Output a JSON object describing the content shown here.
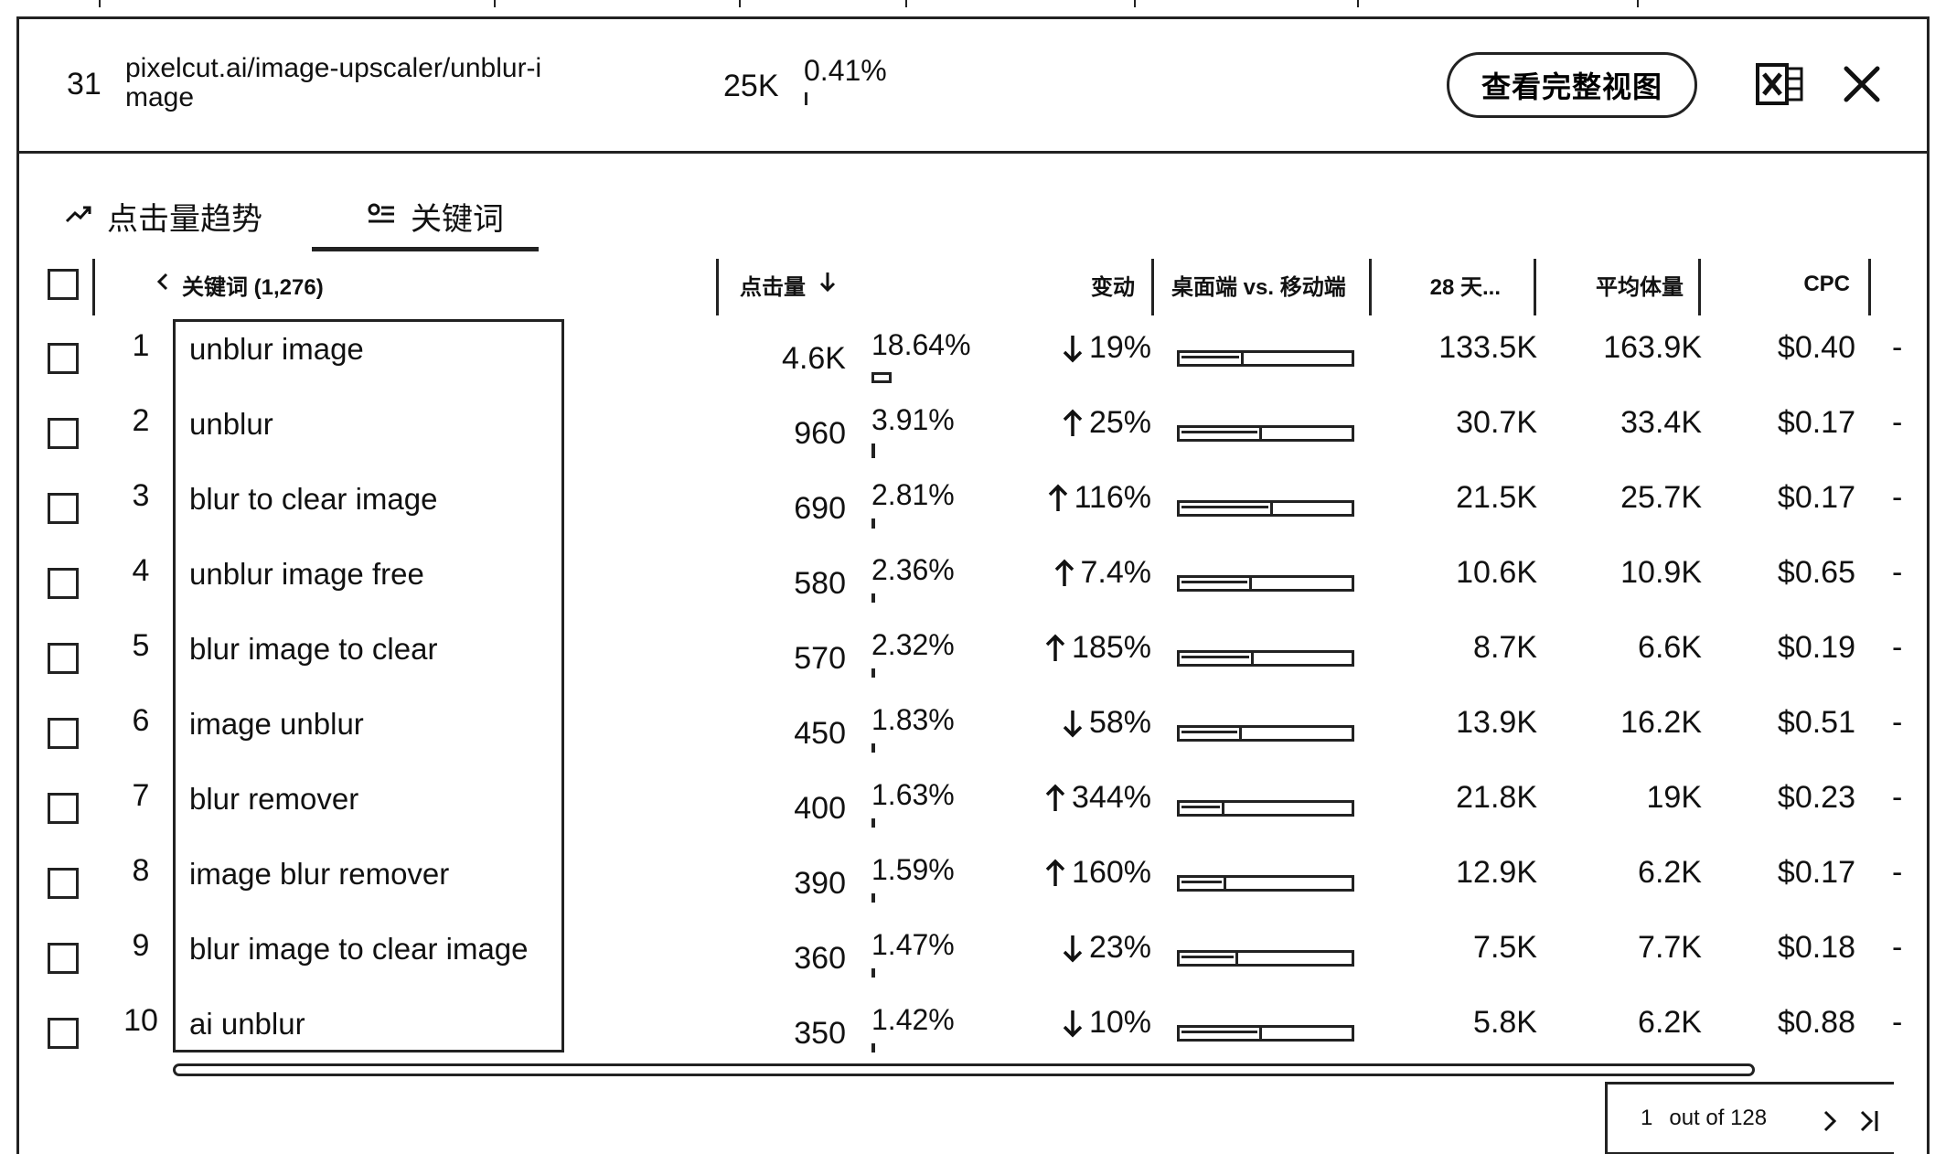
{
  "header": {
    "rank": "31",
    "url": "pixelcut.ai/image-upscaler/unblur-image",
    "clicks": "25K",
    "share": "0.41%",
    "full_view_label": "查看完整视图",
    "export_icon": "excel-icon",
    "close_icon": "close-icon"
  },
  "tabs": [
    {
      "label": "点击量趋势",
      "icon": "trend-icon",
      "active": false
    },
    {
      "label": "关键词",
      "icon": "keyword-list-icon",
      "active": true
    }
  ],
  "table": {
    "columns": {
      "keyword": "关键词 (1,276)",
      "clicks": "点击量",
      "change": "变动",
      "desktop_mobile": "桌面端 vs. 移动端",
      "days28": "28 天...",
      "avg_volume": "平均体量",
      "cpc": "CPC"
    },
    "rows": [
      {
        "rank": "1",
        "keyword": "unblur image",
        "clicks": "4.6K",
        "share": "18.64%",
        "share_pct": 18.64,
        "dir": "down",
        "change": "19%",
        "desktop_pct": 37,
        "d28": "133.5K",
        "vol": "163.9K",
        "cpc": "$0.40",
        "extra": "-"
      },
      {
        "rank": "2",
        "keyword": "unblur",
        "clicks": "960",
        "share": "3.91%",
        "share_pct": 3.91,
        "dir": "up",
        "change": "25%",
        "desktop_pct": 48,
        "d28": "30.7K",
        "vol": "33.4K",
        "cpc": "$0.17",
        "extra": "-"
      },
      {
        "rank": "3",
        "keyword": "blur to clear image",
        "clicks": "690",
        "share": "2.81%",
        "share_pct": 2.81,
        "dir": "up",
        "change": "116%",
        "desktop_pct": 54,
        "d28": "21.5K",
        "vol": "25.7K",
        "cpc": "$0.17",
        "extra": "-"
      },
      {
        "rank": "4",
        "keyword": "unblur image free",
        "clicks": "580",
        "share": "2.36%",
        "share_pct": 2.36,
        "dir": "up",
        "change": "7.4%",
        "desktop_pct": 42,
        "d28": "10.6K",
        "vol": "10.9K",
        "cpc": "$0.65",
        "extra": "-"
      },
      {
        "rank": "5",
        "keyword": "blur image to clear",
        "clicks": "570",
        "share": "2.32%",
        "share_pct": 2.32,
        "dir": "up",
        "change": "185%",
        "desktop_pct": 43,
        "d28": "8.7K",
        "vol": "6.6K",
        "cpc": "$0.19",
        "extra": "-"
      },
      {
        "rank": "6",
        "keyword": "image unblur",
        "clicks": "450",
        "share": "1.83%",
        "share_pct": 1.83,
        "dir": "down",
        "change": "58%",
        "desktop_pct": 36,
        "d28": "13.9K",
        "vol": "16.2K",
        "cpc": "$0.51",
        "extra": "-"
      },
      {
        "rank": "7",
        "keyword": "blur remover",
        "clicks": "400",
        "share": "1.63%",
        "share_pct": 1.63,
        "dir": "up",
        "change": "344%",
        "desktop_pct": 26,
        "d28": "21.8K",
        "vol": "19K",
        "cpc": "$0.23",
        "extra": "-"
      },
      {
        "rank": "8",
        "keyword": "image blur remover",
        "clicks": "390",
        "share": "1.59%",
        "share_pct": 1.59,
        "dir": "up",
        "change": "160%",
        "desktop_pct": 27,
        "d28": "12.9K",
        "vol": "6.2K",
        "cpc": "$0.17",
        "extra": "-"
      },
      {
        "rank": "9",
        "keyword": "blur image to clear image",
        "clicks": "360",
        "share": "1.47%",
        "share_pct": 1.47,
        "dir": "down",
        "change": "23%",
        "desktop_pct": 34,
        "d28": "7.5K",
        "vol": "7.7K",
        "cpc": "$0.18",
        "extra": "-"
      },
      {
        "rank": "10",
        "keyword": "ai unblur",
        "clicks": "350",
        "share": "1.42%",
        "share_pct": 1.42,
        "dir": "down",
        "change": "10%",
        "desktop_pct": 48,
        "d28": "5.8K",
        "vol": "6.2K",
        "cpc": "$0.88",
        "extra": "-"
      }
    ]
  },
  "pagination": {
    "current": "1",
    "of_label": "out of 128"
  }
}
